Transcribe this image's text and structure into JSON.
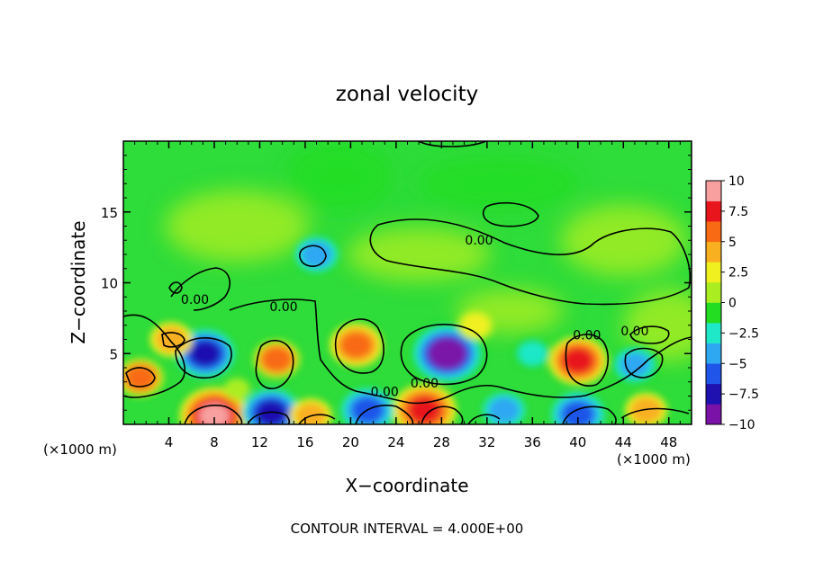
{
  "chart_data": {
    "type": "heatmap",
    "title": "zonal velocity",
    "xlabel": "X−coordinate",
    "ylabel": "Z−coordinate",
    "x_units_left": "(×1000 m)",
    "x_units_right": "(×1000 m)",
    "footer": "CONTOUR INTERVAL = 4.000E+00",
    "xlim": [
      0,
      50
    ],
    "ylim": [
      0,
      20
    ],
    "x_ticks": [
      4,
      8,
      12,
      16,
      20,
      24,
      28,
      32,
      36,
      40,
      44,
      48
    ],
    "y_ticks": [
      5,
      10,
      15
    ],
    "colorbar": {
      "min": -10,
      "max": 10,
      "tick_values": [
        10,
        7.5,
        5,
        2.5,
        0,
        -2.5,
        -5,
        -7.5,
        -10
      ],
      "tick_labels": [
        "10",
        "7.5",
        "5",
        "2.5",
        "0",
        "−2.5",
        "−5",
        "−7.5",
        "−10"
      ],
      "colors": [
        "#7a12a8",
        "#1f10b0",
        "#1f55e8",
        "#2fa8f2",
        "#1fe8c8",
        "#22dd22",
        "#aaee22",
        "#f0f020",
        "#f8b020",
        "#f86a14",
        "#e8161c",
        "#f8a0a0"
      ]
    },
    "contour_labels": [
      {
        "text": "0.00",
        "x": 6.3,
        "z": 8.5
      },
      {
        "text": "0.00",
        "x": 14.1,
        "z": 8.0
      },
      {
        "text": "0.00",
        "x": 31.3,
        "z": 12.7
      },
      {
        "text": "0.00",
        "x": 23.0,
        "z": 2.0
      },
      {
        "text": "0.00",
        "x": 26.5,
        "z": 2.6
      },
      {
        "text": "0.00",
        "x": 40.8,
        "z": 6.0
      },
      {
        "text": "0.00",
        "x": 45.0,
        "z": 6.3
      }
    ],
    "field_features": [
      {
        "x": 28.5,
        "z": 5.0,
        "value": -10
      },
      {
        "x": 7.2,
        "z": 5.0,
        "value": -7
      },
      {
        "x": 8.0,
        "z": 0.6,
        "value": 9
      },
      {
        "x": 26.5,
        "z": 1.0,
        "value": 8
      },
      {
        "x": 40.0,
        "z": 4.5,
        "value": 7
      },
      {
        "x": 20.5,
        "z": 5.6,
        "value": 6
      },
      {
        "x": 13.5,
        "z": 4.6,
        "value": 5
      },
      {
        "x": 1.5,
        "z": 3.3,
        "value": 5
      },
      {
        "x": 17.0,
        "z": 12.0,
        "value": -4
      },
      {
        "x": 21.5,
        "z": 1.0,
        "value": -6
      },
      {
        "x": 13.0,
        "z": 0.8,
        "value": -7
      },
      {
        "x": 40.0,
        "z": 0.7,
        "value": -6
      },
      {
        "x": 45.0,
        "z": 4.2,
        "value": -5
      },
      {
        "x": 33.5,
        "z": 1.0,
        "value": -4
      },
      {
        "x": 46.0,
        "z": 1.0,
        "value": 4
      },
      {
        "x": 4.2,
        "z": 6.0,
        "value": 4
      },
      {
        "x": 16.5,
        "z": 0.6,
        "value": 4
      },
      {
        "x": 36.0,
        "z": 5.0,
        "value": -3
      },
      {
        "x": 10.0,
        "z": 2.5,
        "value": 1
      },
      {
        "x": 31.0,
        "z": 7.0,
        "value": 3
      }
    ]
  }
}
